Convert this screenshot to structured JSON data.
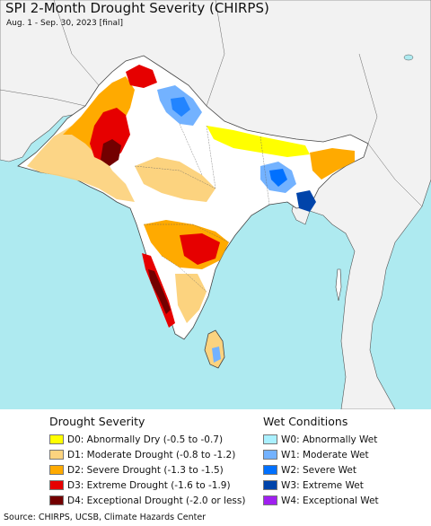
{
  "header": {
    "title": "SPI 2-Month Drought Severity (CHIRPS)",
    "subtitle": "Aug. 1 - Sep. 30, 2023 [final]"
  },
  "legend": {
    "drought": {
      "heading": "Drought Severity",
      "items": [
        {
          "code": "D0",
          "label": "D0: Abnormally Dry (-0.5 to -0.7)",
          "color": "#ffff00"
        },
        {
          "code": "D1",
          "label": "D1: Moderate Drought (-0.8 to -1.2)",
          "color": "#fcd37f"
        },
        {
          "code": "D2",
          "label": "D2: Severe Drought (-1.3 to -1.5)",
          "color": "#ffaa00"
        },
        {
          "code": "D3",
          "label": "D3: Extreme Drought (-1.6 to -1.9)",
          "color": "#e60000"
        },
        {
          "code": "D4",
          "label": "D4: Exceptional Drought (-2.0 or less)",
          "color": "#730000"
        }
      ]
    },
    "wet": {
      "heading": "Wet Conditions",
      "items": [
        {
          "code": "W0",
          "label": "W0: Abnormally Wet",
          "color": "#aaf0ff"
        },
        {
          "code": "W1",
          "label": "W1: Moderate Wet",
          "color": "#73b2ff"
        },
        {
          "code": "W2",
          "label": "W2: Severe Wet",
          "color": "#0070ff"
        },
        {
          "code": "W3",
          "label": "W3: Extreme Wet",
          "color": "#0044aa"
        },
        {
          "code": "W4",
          "label": "W4: Exceptional Wet",
          "color": "#a020f0"
        }
      ]
    }
  },
  "footer": {
    "source": "Source: CHIRPS, UCSB, Climate Hazards Center"
  }
}
